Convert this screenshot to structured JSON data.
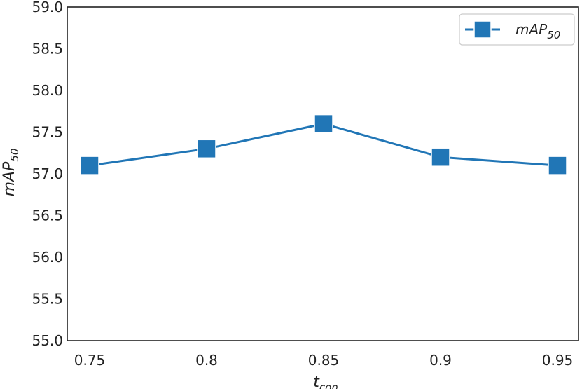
{
  "chart_data": {
    "type": "line",
    "x": [
      0.75,
      0.8,
      0.85,
      0.9,
      0.95
    ],
    "x_tick_labels": [
      "0.75",
      "0.8",
      "0.85",
      "0.9",
      "0.95"
    ],
    "series": [
      {
        "name_base": "mAP",
        "name_sub": "50",
        "values": [
          57.1,
          57.3,
          57.6,
          57.2,
          57.1
        ],
        "marker": "square"
      }
    ],
    "xlabel_base": "t",
    "xlabel_sub": "con",
    "ylabel_base": "mAP",
    "ylabel_sub": "50",
    "ylim": [
      55.0,
      59.0
    ],
    "y_ticks": [
      55.0,
      55.5,
      56.0,
      56.5,
      57.0,
      57.5,
      58.0,
      58.5,
      59.0
    ],
    "y_tick_labels": [
      "55.0",
      "55.5",
      "56.0",
      "56.5",
      "57.0",
      "57.5",
      "58.0",
      "58.5",
      "59.0"
    ],
    "grid": false,
    "legend_position": "top-right",
    "colors": {
      "series": "#2176b6",
      "axis": "#222222"
    }
  }
}
